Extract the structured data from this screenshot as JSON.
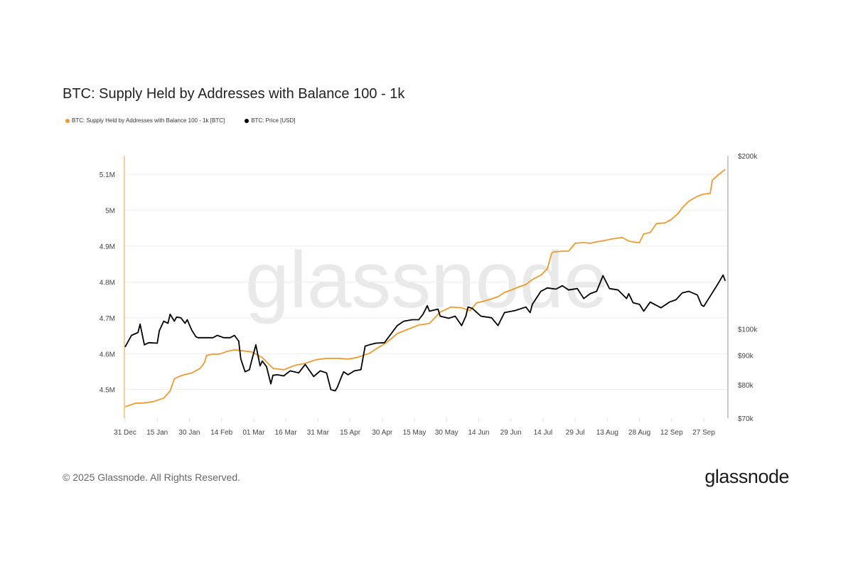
{
  "title": "BTC: Supply Held by Addresses with Balance 100 - 1k",
  "footer": "© 2025 Glassnode. All Rights Reserved.",
  "logo": "glassnode",
  "watermark": "glassnode",
  "colors": {
    "supply": "#f09a2e",
    "price": "#000000",
    "grid": "#eeeeee"
  },
  "chart_data": {
    "type": "line",
    "title": "BTC: Supply Held by Addresses with Balance 100 - 1k",
    "x_unit": "days since 31 Dec",
    "x_ticks": [
      {
        "day": 0,
        "label": "31 Dec"
      },
      {
        "day": 15,
        "label": "15 Jan"
      },
      {
        "day": 30,
        "label": "30 Jan"
      },
      {
        "day": 45,
        "label": "14 Feb"
      },
      {
        "day": 60,
        "label": "01 Mar"
      },
      {
        "day": 75,
        "label": "16 Mar"
      },
      {
        "day": 90,
        "label": "31 Mar"
      },
      {
        "day": 105,
        "label": "15 Apr"
      },
      {
        "day": 120,
        "label": "30 Apr"
      },
      {
        "day": 135,
        "label": "15 May"
      },
      {
        "day": 150,
        "label": "30 May"
      },
      {
        "day": 165,
        "label": "14 Jun"
      },
      {
        "day": 180,
        "label": "29 Jun"
      },
      {
        "day": 195,
        "label": "14 Jul"
      },
      {
        "day": 210,
        "label": "29 Jul"
      },
      {
        "day": 225,
        "label": "13 Aug"
      },
      {
        "day": 240,
        "label": "28 Aug"
      },
      {
        "day": 255,
        "label": "12 Sep"
      },
      {
        "day": 270,
        "label": "27 Sep"
      }
    ],
    "xlim": [
      0,
      282
    ],
    "left_axis": {
      "scale": "linear",
      "ylim": [
        4.42,
        5.152
      ],
      "ticks": [
        {
          "v": 4.5,
          "label": "4.5M"
        },
        {
          "v": 4.6,
          "label": "4.6M"
        },
        {
          "v": 4.7,
          "label": "4.7M"
        },
        {
          "v": 4.8,
          "label": "4.8M"
        },
        {
          "v": 4.9,
          "label": "4.9M"
        },
        {
          "v": 5.0,
          "label": "5M"
        },
        {
          "v": 5.1,
          "label": "5.1M"
        }
      ]
    },
    "right_axis": {
      "scale": "log",
      "ylim": [
        70,
        200
      ],
      "ticks": [
        {
          "v": 70,
          "label": "$70k"
        },
        {
          "v": 80,
          "label": "$80k"
        },
        {
          "v": 90,
          "label": "$90k"
        },
        {
          "v": 100,
          "label": "$100k"
        },
        {
          "v": 200,
          "label": "$200k"
        }
      ]
    },
    "series": [
      {
        "name": "BTC: Supply Held by Addresses with Balance 100 - 1k [BTC]",
        "unit": "M BTC",
        "axis": "left",
        "points": [
          [
            0,
            4.452
          ],
          [
            5,
            4.462
          ],
          [
            8,
            4.462
          ],
          [
            13,
            4.466
          ],
          [
            18,
            4.476
          ],
          [
            21,
            4.496
          ],
          [
            23,
            4.53
          ],
          [
            25,
            4.536
          ],
          [
            28,
            4.542
          ],
          [
            31,
            4.546
          ],
          [
            35,
            4.559
          ],
          [
            37,
            4.575
          ],
          [
            38,
            4.595
          ],
          [
            41,
            4.599
          ],
          [
            44,
            4.599
          ],
          [
            48,
            4.607
          ],
          [
            51,
            4.611
          ],
          [
            56,
            4.607
          ],
          [
            59,
            4.605
          ],
          [
            64,
            4.589
          ],
          [
            69,
            4.559
          ],
          [
            74,
            4.555
          ],
          [
            79,
            4.567
          ],
          [
            84,
            4.573
          ],
          [
            89,
            4.583
          ],
          [
            94,
            4.587
          ],
          [
            99,
            4.587
          ],
          [
            104,
            4.585
          ],
          [
            108,
            4.589
          ],
          [
            111,
            4.595
          ],
          [
            114,
            4.601
          ],
          [
            117,
            4.613
          ],
          [
            122,
            4.631
          ],
          [
            127,
            4.656
          ],
          [
            132,
            4.668
          ],
          [
            137,
            4.68
          ],
          [
            142,
            4.684
          ],
          [
            147,
            4.716
          ],
          [
            152,
            4.73
          ],
          [
            157,
            4.728
          ],
          [
            161,
            4.72
          ],
          [
            164,
            4.742
          ],
          [
            167,
            4.746
          ],
          [
            171,
            4.753
          ],
          [
            174,
            4.759
          ],
          [
            177,
            4.771
          ],
          [
            180,
            4.777
          ],
          [
            184,
            4.787
          ],
          [
            187,
            4.793
          ],
          [
            190,
            4.807
          ],
          [
            194,
            4.819
          ],
          [
            197,
            4.837
          ],
          [
            199,
            4.88
          ],
          [
            200,
            4.884
          ],
          [
            204,
            4.886
          ],
          [
            207,
            4.886
          ],
          [
            210,
            4.908
          ],
          [
            214,
            4.91
          ],
          [
            217,
            4.908
          ],
          [
            220,
            4.912
          ],
          [
            224,
            4.916
          ],
          [
            227,
            4.92
          ],
          [
            232,
            4.924
          ],
          [
            235,
            4.914
          ],
          [
            239,
            4.91
          ],
          [
            240,
            4.91
          ],
          [
            242,
            4.934
          ],
          [
            245,
            4.938
          ],
          [
            248,
            4.963
          ],
          [
            252,
            4.965
          ],
          [
            255,
            4.975
          ],
          [
            258,
            4.991
          ],
          [
            260,
            5.007
          ],
          [
            263,
            5.025
          ],
          [
            267,
            5.039
          ],
          [
            270,
            5.045
          ],
          [
            273,
            5.047
          ],
          [
            274,
            5.084
          ],
          [
            277,
            5.1
          ],
          [
            280,
            5.114
          ]
        ]
      },
      {
        "name": "BTC: Price [USD]",
        "unit": "k USD",
        "axis": "right",
        "points": [
          [
            0,
            93.1
          ],
          [
            3,
            97.5
          ],
          [
            6,
            98.6
          ],
          [
            7,
            102.0
          ],
          [
            9,
            93.9
          ],
          [
            11,
            94.7
          ],
          [
            15,
            94.5
          ],
          [
            16,
            99.4
          ],
          [
            18,
            103.2
          ],
          [
            20,
            102.3
          ],
          [
            21,
            106.1
          ],
          [
            23,
            103.2
          ],
          [
            24,
            104.9
          ],
          [
            26,
            104.6
          ],
          [
            28,
            102.3
          ],
          [
            29,
            103.8
          ],
          [
            31,
            99.7
          ],
          [
            33,
            97.0
          ],
          [
            34,
            96.6
          ],
          [
            38,
            96.6
          ],
          [
            41,
            96.6
          ],
          [
            43,
            97.5
          ],
          [
            46,
            96.6
          ],
          [
            49,
            96.6
          ],
          [
            51,
            97.5
          ],
          [
            53,
            95.3
          ],
          [
            54,
            88.7
          ],
          [
            56,
            84.3
          ],
          [
            58,
            85.0
          ],
          [
            59,
            88.0
          ],
          [
            61,
            93.9
          ],
          [
            63,
            86.3
          ],
          [
            64,
            88.0
          ],
          [
            66,
            86.0
          ],
          [
            68,
            80.3
          ],
          [
            69,
            83.1
          ],
          [
            71,
            83.3
          ],
          [
            74,
            82.9
          ],
          [
            77,
            84.6
          ],
          [
            81,
            83.9
          ],
          [
            84,
            86.8
          ],
          [
            88,
            82.7
          ],
          [
            91,
            84.6
          ],
          [
            94,
            83.9
          ],
          [
            96,
            78.5
          ],
          [
            98,
            78.1
          ],
          [
            99,
            79.2
          ],
          [
            101,
            82.7
          ],
          [
            102,
            84.3
          ],
          [
            104,
            83.3
          ],
          [
            107,
            84.6
          ],
          [
            110,
            85.0
          ],
          [
            112,
            93.4
          ],
          [
            114,
            93.9
          ],
          [
            117,
            94.5
          ],
          [
            121,
            94.7
          ],
          [
            124,
            98.0
          ],
          [
            127,
            101.4
          ],
          [
            130,
            103.2
          ],
          [
            134,
            103.8
          ],
          [
            137,
            103.8
          ],
          [
            139,
            106.1
          ],
          [
            141,
            109.8
          ],
          [
            142,
            107.4
          ],
          [
            146,
            108.3
          ],
          [
            147,
            105.3
          ],
          [
            151,
            104.4
          ],
          [
            154,
            105.3
          ],
          [
            157,
            101.4
          ],
          [
            159,
            105.3
          ],
          [
            160,
            109.2
          ],
          [
            162,
            108.6
          ],
          [
            166,
            105.3
          ],
          [
            171,
            104.6
          ],
          [
            174,
            101.4
          ],
          [
            177,
            106.8
          ],
          [
            182,
            107.7
          ],
          [
            187,
            109.2
          ],
          [
            189,
            106.8
          ],
          [
            190,
            110.4
          ],
          [
            194,
            116.3
          ],
          [
            197,
            117.9
          ],
          [
            201,
            117.3
          ],
          [
            204,
            118.9
          ],
          [
            207,
            116.9
          ],
          [
            211,
            117.6
          ],
          [
            214,
            113.0
          ],
          [
            217,
            115.2
          ],
          [
            220,
            116.3
          ],
          [
            223,
            123.8
          ],
          [
            226,
            117.6
          ],
          [
            230,
            116.9
          ],
          [
            234,
            113.0
          ],
          [
            235,
            115.2
          ],
          [
            237,
            111.1
          ],
          [
            240,
            110.4
          ],
          [
            242,
            107.4
          ],
          [
            245,
            111.4
          ],
          [
            250,
            108.9
          ],
          [
            254,
            111.4
          ],
          [
            257,
            112.4
          ],
          [
            260,
            115.6
          ],
          [
            263,
            116.3
          ],
          [
            267,
            114.6
          ],
          [
            269,
            110.0
          ],
          [
            270,
            109.5
          ],
          [
            274,
            115.6
          ],
          [
            277,
            120.5
          ],
          [
            279,
            124.1
          ],
          [
            280,
            121.3
          ]
        ]
      }
    ],
    "legend_position": "top-left",
    "grid": true
  }
}
